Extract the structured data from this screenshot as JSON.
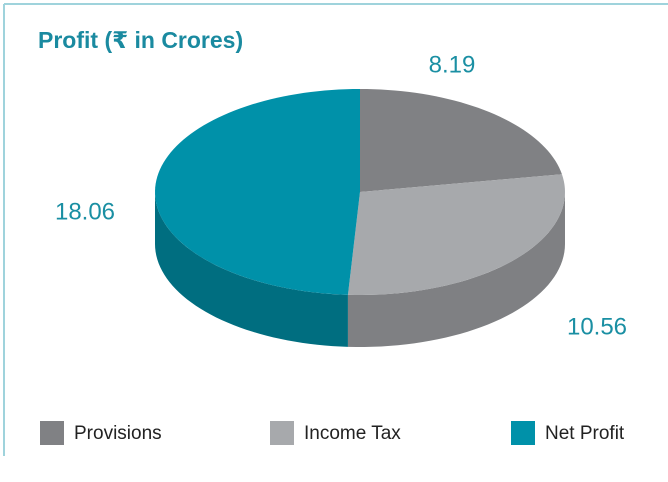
{
  "chart_data": {
    "type": "pie",
    "title": "Profit (₹ in Crores)",
    "categories": [
      "Provisions",
      "Income Tax",
      "Net Profit"
    ],
    "values": [
      8.19,
      10.56,
      18.06
    ],
    "colors": [
      "#808184",
      "#a7a9ac",
      "#0091a9"
    ],
    "legend": "bottom"
  }
}
